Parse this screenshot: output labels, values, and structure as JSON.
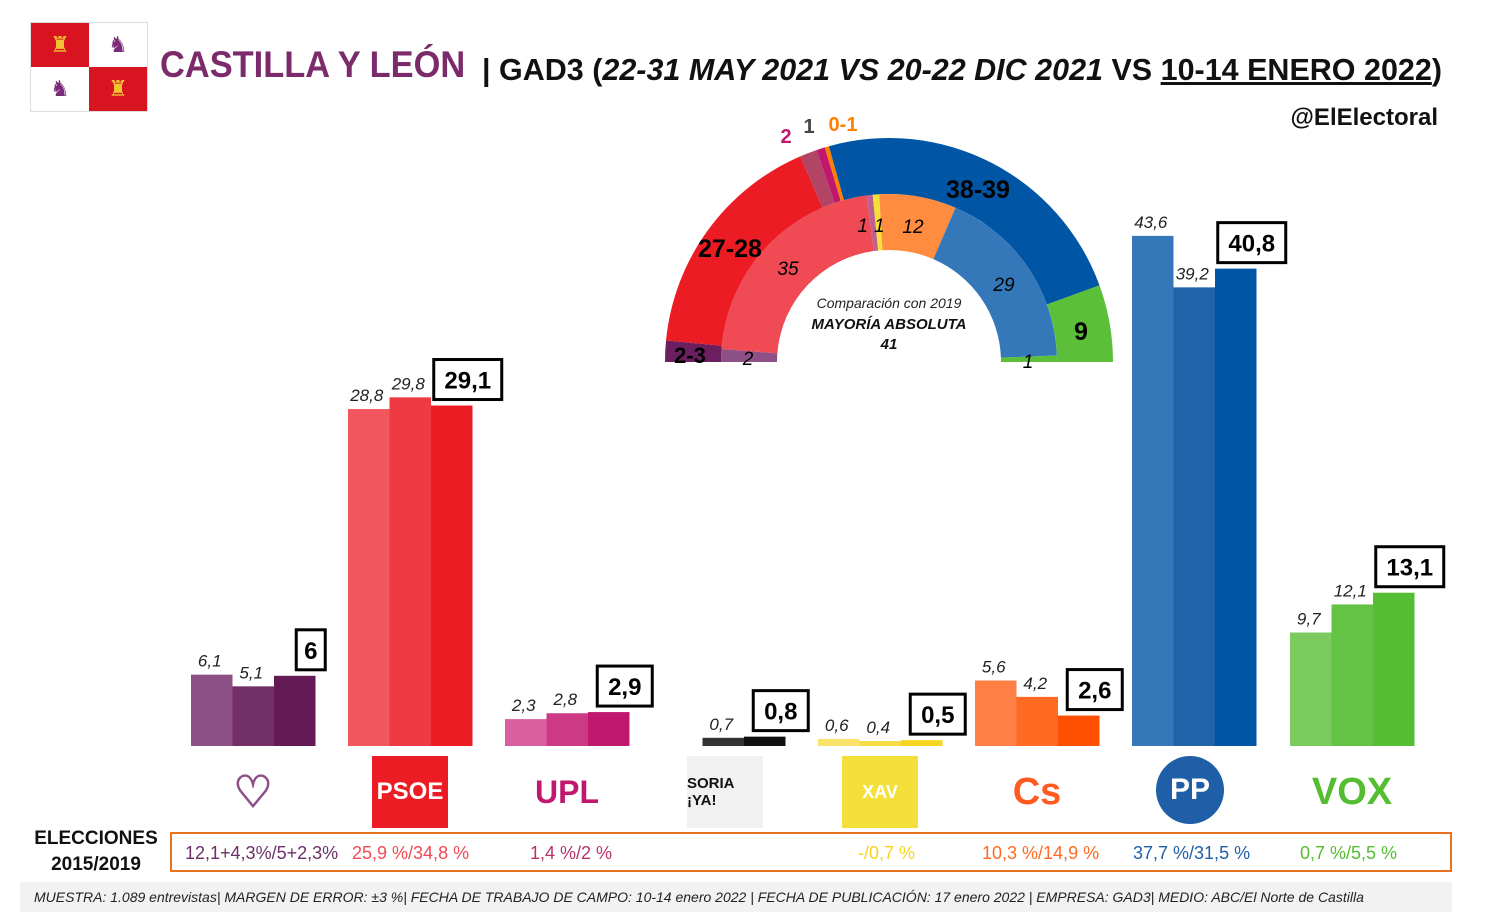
{
  "header": {
    "title": "CASTILLA Y LEÓN",
    "separator": "|",
    "pollster": "GAD3 (",
    "date1": "22-31 MAY 2021 VS 20-22 DIC 2021",
    "vs": " VS ",
    "date3": "10-14 ENERO 2022",
    "close": ")",
    "handle": "@ElElectoral"
  },
  "chart_data": [
    {
      "type": "bar",
      "title": "",
      "periods": [
        "22-31 MAY 2021",
        "20-22 DIC 2021",
        "10-14 ENERO 2022"
      ],
      "categories": [
        "Unidas Podemos",
        "PSOE",
        "UPL",
        "Soria ¡Ya!",
        "Por Ávila",
        "Cs",
        "PP",
        "VOX"
      ],
      "series": [
        {
          "values": [
            6.1,
            28.8,
            2.3,
            null,
            0.6,
            5.6,
            43.6,
            9.7
          ]
        },
        {
          "values": [
            5.1,
            29.8,
            2.8,
            0.7,
            0.4,
            4.2,
            39.2,
            12.1
          ]
        },
        {
          "values": [
            6,
            29.1,
            2.9,
            0.8,
            0.5,
            2.6,
            40.8,
            13.1
          ]
        }
      ],
      "labels": [
        [
          "6,1",
          "5,1",
          "6"
        ],
        [
          "28,8",
          "29,8",
          "29,1"
        ],
        [
          "2,3",
          "2,8",
          "2,9"
        ],
        [
          null,
          "0,7",
          "0,8"
        ],
        [
          "0,6",
          "0,4",
          "0,5"
        ],
        [
          "5,6",
          "4,2",
          "2,6"
        ],
        [
          "43,6",
          "39,2",
          "40,8"
        ],
        [
          "9,7",
          "12,1",
          "13,1"
        ]
      ],
      "colors": [
        [
          "#8c5086",
          "#733068",
          "#641a55"
        ],
        [
          "#f2575f",
          "#ef3a44",
          "#ec1c24"
        ],
        [
          "#d95fa0",
          "#cc3a86",
          "#c0186e"
        ],
        [
          "#555555",
          "#333333",
          "#111111"
        ],
        [
          "#f9e26a",
          "#f7dc45",
          "#f5d51f"
        ],
        [
          "#ff7f45",
          "#ff6a22",
          "#ff4f00"
        ],
        [
          "#3478b9",
          "#1f64a8",
          "#0055a4"
        ],
        [
          "#7bcb5e",
          "#64c244",
          "#54bd32"
        ]
      ],
      "ylim": [
        0,
        45
      ]
    },
    {
      "type": "pie",
      "subtype": "hemicycle",
      "title": "",
      "total_seats": 81,
      "center_text": {
        "line1": "Comparación con 2019",
        "line2": "MAYORÍA ABSOLUTA",
        "line3": "41"
      },
      "outer_ring": {
        "label": "10-14 ENERO 2022",
        "segments": [
          {
            "party": "Unidas Podemos",
            "seats": 2.5,
            "label": "2-3",
            "color": "#6b1f5e"
          },
          {
            "party": "PSOE",
            "seats": 27.5,
            "label": "27-28",
            "color": "#ec1c24"
          },
          {
            "party": "UPL",
            "seats": 2,
            "label": "2",
            "color": "#b24466"
          },
          {
            "party": "Soria ¡Ya!",
            "seats": 1,
            "label": "1",
            "color": "#c0186e"
          },
          {
            "party": "Cs",
            "seats": 0.5,
            "label": "0-1",
            "color": "#ff7f00"
          },
          {
            "party": "PP",
            "seats": 38.5,
            "label": "38-39",
            "color": "#0055a4"
          },
          {
            "party": "VOX",
            "seats": 9,
            "label": "9",
            "color": "#5cbf3a"
          }
        ]
      },
      "inner_ring": {
        "label": "2019",
        "segments": [
          {
            "party": "Unidas Podemos",
            "seats": 2,
            "label": "2",
            "color": "#8c5086"
          },
          {
            "party": "PSOE",
            "seats": 35,
            "label": "35",
            "color": "#f04a55"
          },
          {
            "party": "UPL",
            "seats": 1,
            "label": "1",
            "color": "#c0608c"
          },
          {
            "party": "Por Ávila",
            "seats": 1,
            "label": "1",
            "color": "#f5e03a"
          },
          {
            "party": "Cs",
            "seats": 12,
            "label": "12",
            "color": "#ff8c3f"
          },
          {
            "party": "PP",
            "seats": 29,
            "label": "29",
            "color": "#3478b9"
          },
          {
            "party": "VOX",
            "seats": 1,
            "label": "1",
            "color": "#5cbf3a"
          }
        ]
      }
    }
  ],
  "logos": [
    {
      "icon": "heart-icon"
    },
    {
      "text": "PSOE"
    },
    {
      "text": "UPL"
    },
    {
      "text": "SORIA ¡YA!"
    },
    {
      "text": "XAV"
    },
    {
      "text": "Cs"
    },
    {
      "text": "PP"
    },
    {
      "text": "VOX"
    }
  ],
  "elections": {
    "label1": "ELECCIONES",
    "label2": "2015/2019",
    "values": [
      {
        "text": "12,1+4,3%/5+2,3%",
        "color": "#6b2f6a"
      },
      {
        "text": "25,9 %/34,8 %",
        "color": "#f04a55"
      },
      {
        "text": "1,4 %/2 %",
        "color": "#b8336a"
      },
      {
        "text": "",
        "color": "#333"
      },
      {
        "text": "-/0,7 %",
        "color": "#f5d51f"
      },
      {
        "text": "10,3 %/14,9 %",
        "color": "#ff6a22"
      },
      {
        "text": "37,7 %/31,5 %",
        "color": "#1f5fa8"
      },
      {
        "text": "0,7 %/5,5 %",
        "color": "#54bd32"
      }
    ]
  },
  "footer": "MUESTRA: 1.089 entrevistas| MARGEN DE ERROR: ±3 %| FECHA DE TRABAJO DE CAMPO: 10-14 enero 2022 | FECHA DE PUBLICACIÓN: 17 enero 2022 | EMPRESA: GAD3| MEDIO: ABC/El Norte de Castilla"
}
